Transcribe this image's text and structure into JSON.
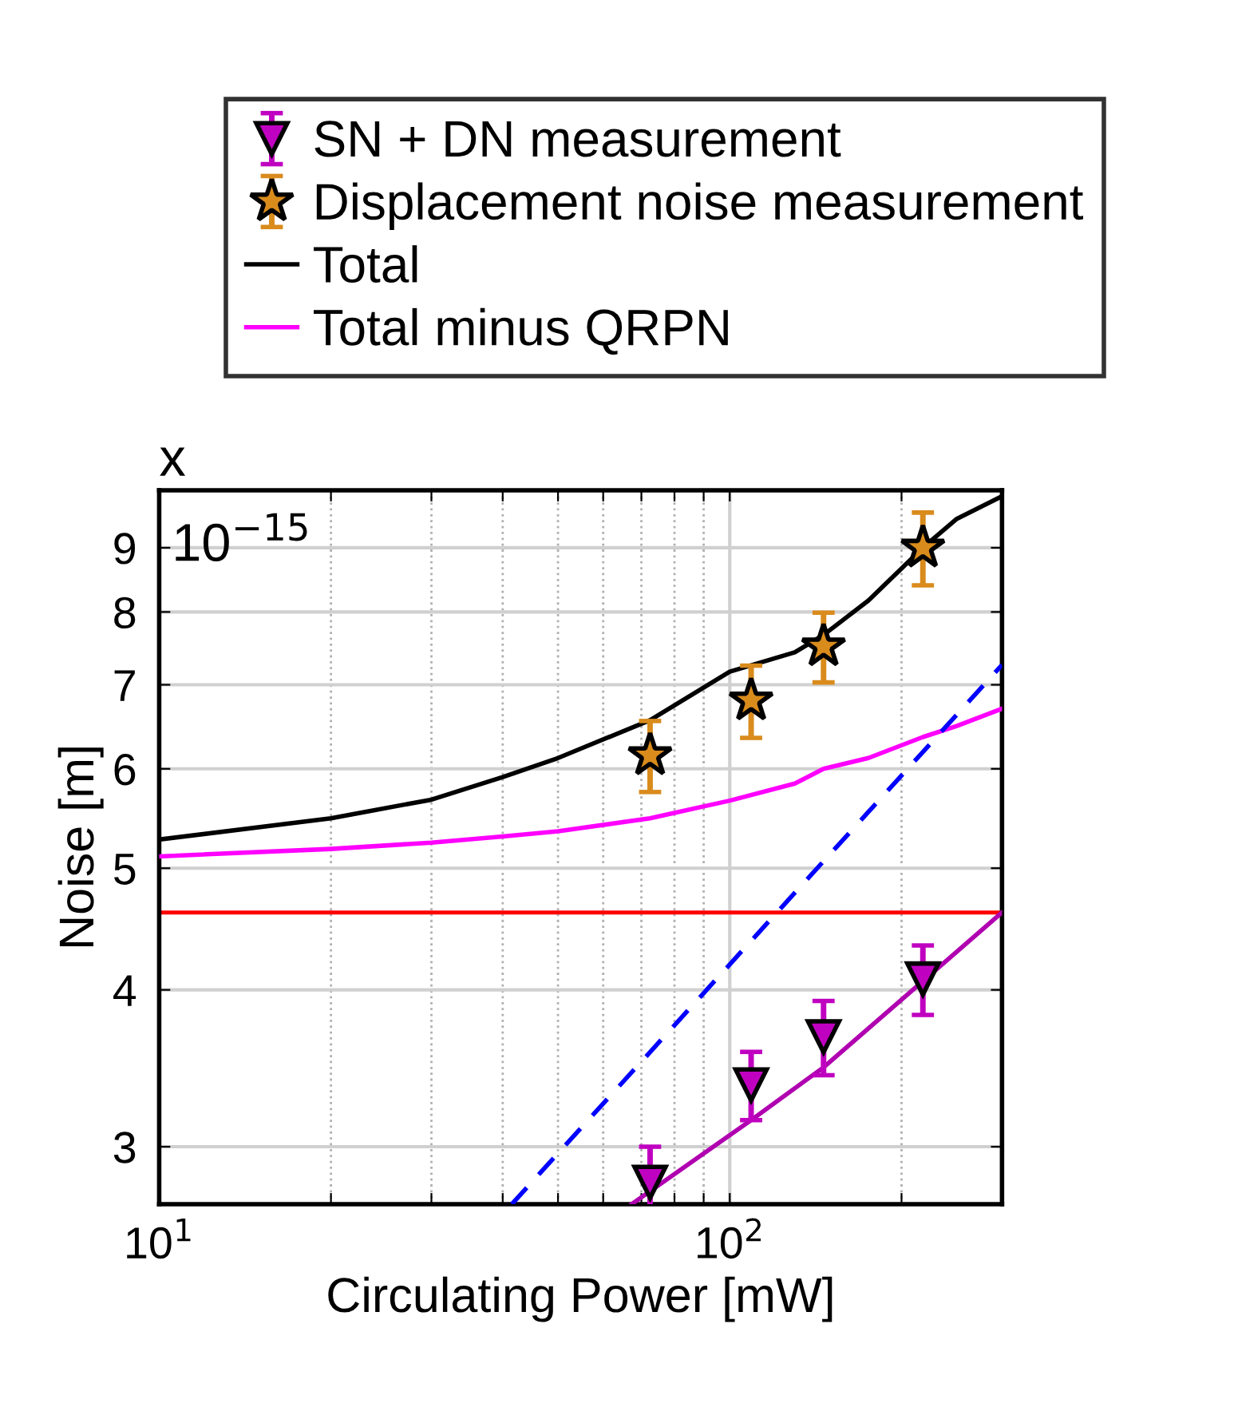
{
  "chart_data": {
    "type": "scatter",
    "xlabel": "Circulating Power [mW]",
    "ylabel": "Noise [m]",
    "log": "xy",
    "xlim": [
      10,
      300
    ],
    "ylim": [
      2.7,
      10
    ],
    "xticks": [
      {
        "value": 10,
        "label": "10$^{1}$"
      },
      {
        "value": 20,
        "label": null
      },
      {
        "value": 30,
        "label": null
      },
      {
        "value": 40,
        "label": null
      },
      {
        "value": 50,
        "label": null
      },
      {
        "value": 60,
        "label": null
      },
      {
        "value": 70,
        "label": null
      },
      {
        "value": 80,
        "label": null
      },
      {
        "value": 90,
        "label": null
      },
      {
        "value": 100,
        "label": "10$^{2}$"
      },
      {
        "value": 200,
        "label": null
      }
    ],
    "yticks": [
      3,
      4,
      5,
      6,
      7,
      8,
      9
    ],
    "grid": true,
    "legend": "top",
    "annotations": [
      "x",
      "10$^{−15}$"
    ],
    "ref_lines": [
      {
        "axis": "y",
        "value": 4.61,
        "color": "#ff0000",
        "line_style": "solid"
      }
    ],
    "series": [
      {
        "name": "SN + DN measurement",
        "marker": "triangle",
        "color": "#c000c0",
        "x": [
          72.5,
          109,
          146,
          218
        ],
        "values": [
          2.81,
          3.36,
          3.67,
          4.08
        ],
        "errors": [
          0.19,
          0.21,
          0.25,
          0.26
        ]
      },
      {
        "name": "Displacement noise measurement",
        "marker": "star",
        "color": "#d98b1c",
        "x": [
          72.5,
          109,
          146,
          218
        ],
        "values": [
          6.15,
          6.8,
          7.51,
          9.0
        ],
        "errors": [
          0.4,
          0.45,
          0.48,
          0.6
        ]
      },
      {
        "name": "Total",
        "type": "line",
        "color": "#000000",
        "x": [
          10,
          20,
          30,
          40,
          50,
          72.5,
          100,
          130,
          146,
          175,
          218,
          250,
          300
        ],
        "values": [
          5.27,
          5.48,
          5.67,
          5.91,
          6.12,
          6.56,
          7.17,
          7.43,
          7.67,
          8.17,
          9.0,
          9.49,
          9.89
        ]
      },
      {
        "name": "Total minus QRPN",
        "type": "line",
        "color": "#ff00ff",
        "x": [
          10,
          20,
          30,
          40,
          50,
          72.5,
          100,
          130,
          146,
          175,
          218,
          250,
          300
        ],
        "values": [
          5.11,
          5.18,
          5.24,
          5.3,
          5.35,
          5.48,
          5.66,
          5.84,
          6.0,
          6.12,
          6.36,
          6.49,
          6.7
        ]
      },
      {
        "type": "line",
        "color": "#b000b0",
        "x": [
          67.3,
          109,
          146,
          300
        ],
        "values": [
          2.7,
          3.15,
          3.47,
          4.61
        ]
      },
      {
        "type": "line",
        "line_style": "dashed",
        "color": "#0000ff",
        "x": [
          41.5,
          300
        ],
        "values": [
          2.7,
          7.26
        ]
      }
    ]
  }
}
